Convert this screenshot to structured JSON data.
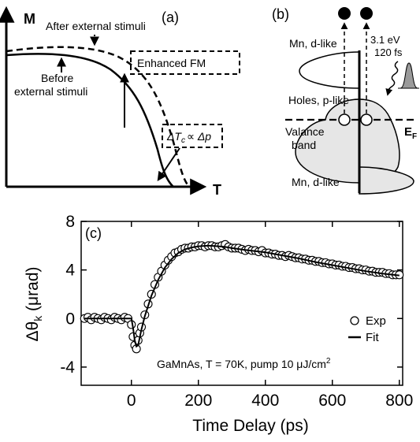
{
  "panel_a": {
    "label": "(a)",
    "y_axis": "M",
    "x_axis": "T",
    "after_label": "After external stimuli",
    "before_label_1": "Before",
    "before_label_2": "external stimuli",
    "enhanced_label": "Enhanced FM",
    "tc_label_delta_t": "ΔT",
    "tc_label_sub": "c",
    "tc_label_rel": "∝ Δp"
  },
  "panel_b": {
    "label": "(b)",
    "mn_upper": "Mn, d-like",
    "holes": "Holes, p-like",
    "valence_1": "Valance",
    "valence_2": "band",
    "mn_lower": "Mn, d-like",
    "ef_main": "E",
    "ef_sub": "F",
    "pulse_energy": "3.1 eV",
    "pulse_duration": "120 fs"
  },
  "panel_c": {
    "label": "(c)",
    "ylabel_main": "Δθ",
    "ylabel_sub": "k",
    "ylabel_unit": " (μrad)",
    "xlabel": "Time Delay (ps)",
    "legend_exp": "Exp",
    "legend_fit": "Fit",
    "annotation": "GaMnAs, T = 70K, pump 10 μJ/cm",
    "annotation_sup": "2"
  },
  "chart_data": {
    "type": "scatter",
    "xlabel": "Time Delay (ps)",
    "ylabel": "Δθk (μrad)",
    "xlim": [
      -150,
      810
    ],
    "ylim": [
      -5.5,
      8
    ],
    "xticks": [
      0,
      200,
      400,
      600,
      800
    ],
    "yticks": [
      -4,
      0,
      4,
      8
    ],
    "legend_position": "right",
    "series": [
      {
        "name": "Exp",
        "marker": "open-circle",
        "x": [
          -140,
          -130,
          -120,
          -110,
          -100,
          -90,
          -80,
          -70,
          -60,
          -50,
          -40,
          -30,
          -20,
          -10,
          0,
          5,
          10,
          15,
          20,
          25,
          30,
          40,
          50,
          60,
          70,
          80,
          90,
          100,
          110,
          120,
          130,
          140,
          150,
          160,
          170,
          180,
          190,
          200,
          210,
          220,
          230,
          240,
          250,
          260,
          270,
          280,
          290,
          300,
          310,
          320,
          330,
          340,
          350,
          360,
          370,
          380,
          390,
          400,
          410,
          420,
          430,
          440,
          450,
          460,
          470,
          480,
          490,
          500,
          510,
          520,
          530,
          540,
          550,
          560,
          570,
          580,
          590,
          600,
          610,
          620,
          630,
          640,
          650,
          660,
          670,
          680,
          690,
          700,
          710,
          720,
          730,
          740,
          750,
          760,
          770,
          780,
          790,
          800
        ],
        "y": [
          0,
          0.1,
          -0.1,
          0.1,
          0,
          -0.1,
          0.1,
          0,
          -0.1,
          0.1,
          0,
          -0.1,
          0.1,
          0,
          -0.5,
          -1.5,
          -2.2,
          -2.5,
          -1.8,
          -1.2,
          -0.7,
          0.3,
          1.2,
          2,
          2.8,
          3.4,
          3.9,
          4.4,
          4.8,
          5.1,
          5.4,
          5.5,
          5.7,
          5.8,
          5.8,
          5.9,
          5.9,
          6,
          6,
          5.9,
          6,
          6,
          5.9,
          5.9,
          6,
          6.1,
          5.9,
          5.8,
          5.8,
          5.8,
          5.7,
          5.6,
          5.7,
          5.6,
          5.6,
          5.5,
          5.6,
          5.4,
          5.4,
          5.3,
          5.3,
          5.2,
          5.2,
          5.1,
          5.2,
          5.1,
          5,
          5,
          4.9,
          4.9,
          4.8,
          4.8,
          4.7,
          4.7,
          4.6,
          4.6,
          4.5,
          4.5,
          4.4,
          4.4,
          4.3,
          4.3,
          4.2,
          4.2,
          4.1,
          4.1,
          4,
          4,
          3.9,
          3.9,
          3.8,
          3.8,
          3.8,
          3.7,
          3.7,
          3.6,
          3.6,
          3.6
        ]
      },
      {
        "name": "Fit",
        "marker": "line",
        "x": [
          -140,
          -100,
          -50,
          -20,
          0,
          5,
          10,
          15,
          20,
          30,
          40,
          60,
          80,
          100,
          120,
          140,
          160,
          180,
          200,
          230,
          260,
          280,
          300,
          340,
          400,
          450,
          500,
          550,
          600,
          650,
          700,
          750,
          800
        ],
        "y": [
          0,
          0,
          0,
          0,
          0,
          -0.8,
          -1.8,
          -2.3,
          -2.2,
          -0.9,
          0.2,
          1.9,
          3.2,
          4.2,
          4.9,
          5.4,
          5.7,
          5.85,
          5.95,
          6.0,
          5.95,
          5.9,
          5.8,
          5.65,
          5.45,
          5.2,
          4.95,
          4.65,
          4.4,
          4.15,
          3.9,
          3.7,
          3.55
        ]
      }
    ]
  }
}
